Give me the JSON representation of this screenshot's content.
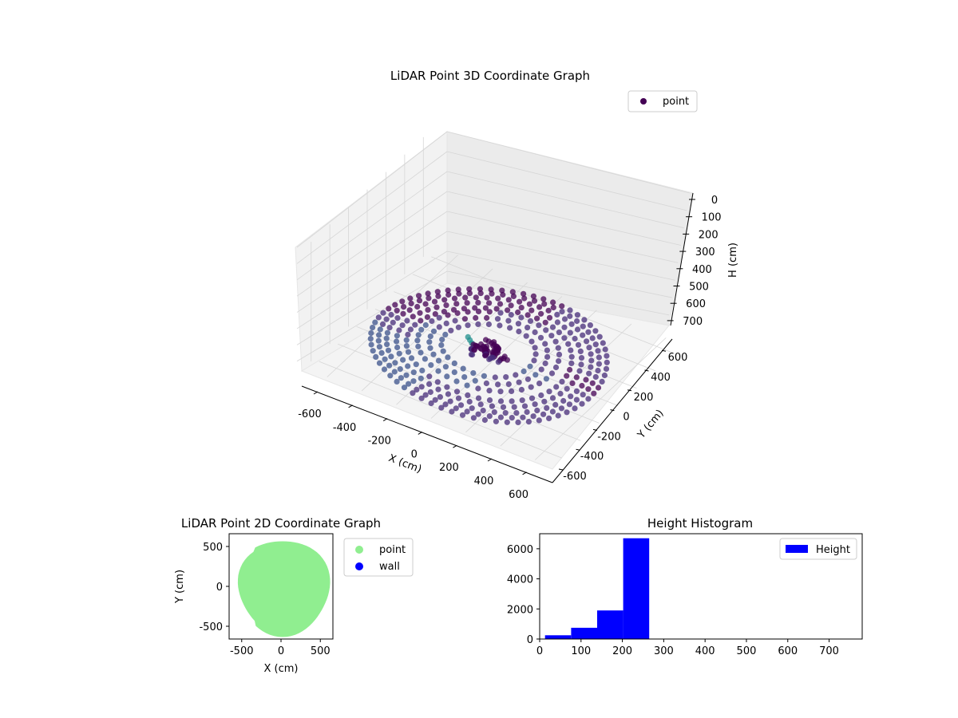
{
  "figure": {
    "background": "#ffffff"
  },
  "chart_data": [
    {
      "type": "scatter",
      "title": "LiDAR Point 3D Coordinate Graph",
      "xlabel": "X (cm)",
      "ylabel": "Y (cm)",
      "zlabel": "H (cm)",
      "xlim": [
        -700,
        700
      ],
      "ylim": [
        -700,
        700
      ],
      "zlim": [
        760,
        0
      ],
      "z_inverted": true,
      "x_ticks": [
        -600,
        -400,
        -200,
        0,
        200,
        400,
        600
      ],
      "y_ticks": [
        -600,
        -400,
        -200,
        0,
        200,
        400,
        600
      ],
      "z_ticks": [
        0,
        100,
        200,
        300,
        400,
        500,
        600,
        700
      ],
      "legend": {
        "entries": [
          "point"
        ],
        "placement": "top-right"
      },
      "colormap": "viridis",
      "point_color": "#440154",
      "grid": true,
      "series": [
        {
          "name": "point",
          "description_points": [
            {
              "x": -600,
              "y": 0,
              "h": 220
            },
            {
              "x": -424,
              "y": -424,
              "h": 230
            },
            {
              "x": 0,
              "y": -600,
              "h": 240
            },
            {
              "x": 424,
              "y": -424,
              "h": 240
            },
            {
              "x": 600,
              "y": 0,
              "h": 230
            },
            {
              "x": 424,
              "y": 424,
              "h": 225
            },
            {
              "x": 0,
              "y": 600,
              "h": 220
            },
            {
              "x": -424,
              "y": 424,
              "h": 215
            },
            {
              "x": -30,
              "y": 60,
              "h": 150
            },
            {
              "x": 20,
              "y": 40,
              "h": 160
            },
            {
              "x": 60,
              "y": -200,
              "h": 560
            },
            {
              "x": 80,
              "y": -240,
              "h": 680
            }
          ]
        }
      ]
    },
    {
      "type": "scatter",
      "title": "LiDAR Point 2D Coordinate Graph",
      "xlabel": "X (cm)",
      "ylabel": "Y (cm)",
      "xlim": [
        -660,
        660
      ],
      "ylim": [
        -660,
        660
      ],
      "x_ticks": [
        -500,
        0,
        500
      ],
      "y_ticks": [
        -500,
        0,
        500
      ],
      "legend": {
        "entries": [
          "point",
          "wall"
        ],
        "placement": "outside-right"
      },
      "series": [
        {
          "name": "point",
          "color": "#90ee90",
          "shape": "filled disc radius ~600 cm"
        },
        {
          "name": "wall",
          "color": "#0000ff",
          "values": []
        }
      ]
    },
    {
      "type": "bar",
      "title": "Height Histogram",
      "xlabel": "",
      "ylabel": "",
      "xlim": [
        0,
        780
      ],
      "ylim": [
        0,
        7000
      ],
      "x_ticks": [
        0,
        100,
        200,
        300,
        400,
        500,
        600,
        700
      ],
      "y_ticks": [
        0,
        2000,
        4000,
        6000
      ],
      "legend": {
        "entries": [
          "Height"
        ],
        "placement": "top-right"
      },
      "series": [
        {
          "name": "Height",
          "color": "#0000ff",
          "bins": [
            {
              "start": 13,
              "end": 76,
              "count": 250
            },
            {
              "start": 76,
              "end": 139,
              "count": 750
            },
            {
              "start": 139,
              "end": 202,
              "count": 1900
            },
            {
              "start": 202,
              "end": 265,
              "count": 6700
            },
            {
              "start": 265,
              "end": 328,
              "count": 0
            },
            {
              "start": 328,
              "end": 391,
              "count": 0
            },
            {
              "start": 391,
              "end": 454,
              "count": 0
            },
            {
              "start": 454,
              "end": 517,
              "count": 0
            },
            {
              "start": 517,
              "end": 580,
              "count": 0
            },
            {
              "start": 580,
              "end": 643,
              "count": 0
            },
            {
              "start": 643,
              "end": 706,
              "count": 0
            },
            {
              "start": 706,
              "end": 769,
              "count": 0
            }
          ]
        }
      ]
    }
  ]
}
